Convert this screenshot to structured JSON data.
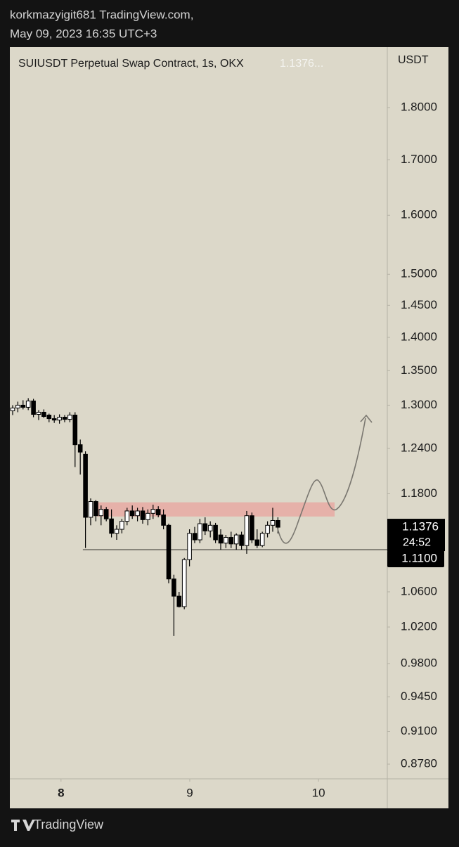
{
  "header": {
    "line1": "korkmazyigit681 TradingView.com,",
    "line2": "May 09, 2023 16:35 UTC+3"
  },
  "chart_data": {
    "type": "candlestick",
    "legend": "SUIUSDT Perpetual Swap Contract, 1s, OKX",
    "legend_price": "1.1376...",
    "y_unit": "USDT",
    "log_scale": true,
    "ylim": [
      0.864,
      1.923
    ],
    "yticks": [
      {
        "value": 1.8,
        "label": "1.8000"
      },
      {
        "value": 1.7,
        "label": "1.7000"
      },
      {
        "value": 1.6,
        "label": "1.6000"
      },
      {
        "value": 1.5,
        "label": "1.5000"
      },
      {
        "value": 1.45,
        "label": "1.4500"
      },
      {
        "value": 1.4,
        "label": "1.4000"
      },
      {
        "value": 1.35,
        "label": "1.3500"
      },
      {
        "value": 1.3,
        "label": "1.3000"
      },
      {
        "value": 1.24,
        "label": "1.2400"
      },
      {
        "value": 1.18,
        "label": "1.1800"
      },
      {
        "value": 1.06,
        "label": "1.0600"
      },
      {
        "value": 1.02,
        "label": "1.0200"
      },
      {
        "value": 0.98,
        "label": "0.9800"
      },
      {
        "value": 0.945,
        "label": "0.9450"
      },
      {
        "value": 0.91,
        "label": "0.9100"
      },
      {
        "value": 0.878,
        "label": "0.8780"
      }
    ],
    "xlim": [
      -0.54,
      72.03
    ],
    "xticks": [
      {
        "value": 9.3,
        "label": "8"
      },
      {
        "value": 34.05,
        "label": "9"
      },
      {
        "value": 58.8,
        "label": "10"
      }
    ],
    "up_color": "#ffffff",
    "down_color": "#000000",
    "open": [
      1.292,
      1.296,
      1.3,
      1.297,
      1.306,
      1.287,
      1.29,
      1.286,
      1.281,
      1.279,
      1.283,
      1.28,
      1.286,
      1.245,
      1.232,
      1.15,
      1.17,
      1.152,
      1.16,
      1.148,
      1.13,
      1.135,
      1.145,
      1.158,
      1.152,
      1.158,
      1.147,
      1.155,
      1.16,
      1.153,
      1.14,
      1.075,
      1.055,
      1.043,
      1.098,
      1.13,
      1.122,
      1.142,
      1.133,
      1.14,
      1.128,
      1.118,
      1.125,
      1.117,
      1.128,
      1.115,
      1.152,
      1.122,
      1.115,
      1.13,
      1.14,
      1.146
    ],
    "high": [
      1.3,
      1.305,
      1.307,
      1.31,
      1.309,
      1.293,
      1.294,
      1.288,
      1.286,
      1.287,
      1.286,
      1.29,
      1.29,
      1.252,
      1.236,
      1.174,
      1.172,
      1.165,
      1.163,
      1.16,
      1.14,
      1.148,
      1.162,
      1.165,
      1.162,
      1.163,
      1.16,
      1.166,
      1.164,
      1.16,
      1.142,
      1.08,
      1.06,
      1.1,
      1.135,
      1.138,
      1.148,
      1.15,
      1.145,
      1.143,
      1.135,
      1.128,
      1.132,
      1.13,
      1.132,
      1.158,
      1.156,
      1.135,
      1.132,
      1.145,
      1.162,
      1.15
    ],
    "low": [
      1.286,
      1.29,
      1.294,
      1.293,
      1.283,
      1.279,
      1.282,
      1.276,
      1.275,
      1.274,
      1.276,
      1.276,
      1.215,
      1.205,
      1.112,
      1.14,
      1.145,
      1.14,
      1.145,
      1.125,
      1.122,
      1.13,
      1.14,
      1.148,
      1.145,
      1.142,
      1.14,
      1.148,
      1.15,
      1.135,
      1.07,
      1.01,
      1.042,
      1.04,
      1.09,
      1.118,
      1.118,
      1.128,
      1.125,
      1.118,
      1.11,
      1.112,
      1.112,
      1.11,
      1.11,
      1.105,
      1.118,
      1.112,
      1.113,
      1.125,
      1.132,
      1.13
    ],
    "close": [
      1.296,
      1.3,
      1.297,
      1.306,
      1.287,
      1.29,
      1.284,
      1.281,
      1.279,
      1.283,
      1.28,
      1.286,
      1.245,
      1.235,
      1.15,
      1.17,
      1.152,
      1.16,
      1.148,
      1.13,
      1.135,
      1.145,
      1.158,
      1.152,
      1.158,
      1.147,
      1.155,
      1.16,
      1.153,
      1.14,
      1.075,
      1.055,
      1.043,
      1.098,
      1.13,
      1.122,
      1.142,
      1.133,
      1.14,
      1.122,
      1.118,
      1.125,
      1.117,
      1.128,
      1.115,
      1.152,
      1.122,
      1.115,
      1.13,
      1.14,
      1.146,
      1.1376
    ],
    "zone": {
      "low": 1.151,
      "high": 1.169,
      "x": [
        16.2,
        61.9
      ],
      "color": "#e8aaa3"
    },
    "level": {
      "value": 1.11,
      "label": "1.1100",
      "x_start": 13.5
    },
    "last_price": 1.1376,
    "countdown": "24:52"
  },
  "footer": {
    "brand": "TradingView"
  }
}
